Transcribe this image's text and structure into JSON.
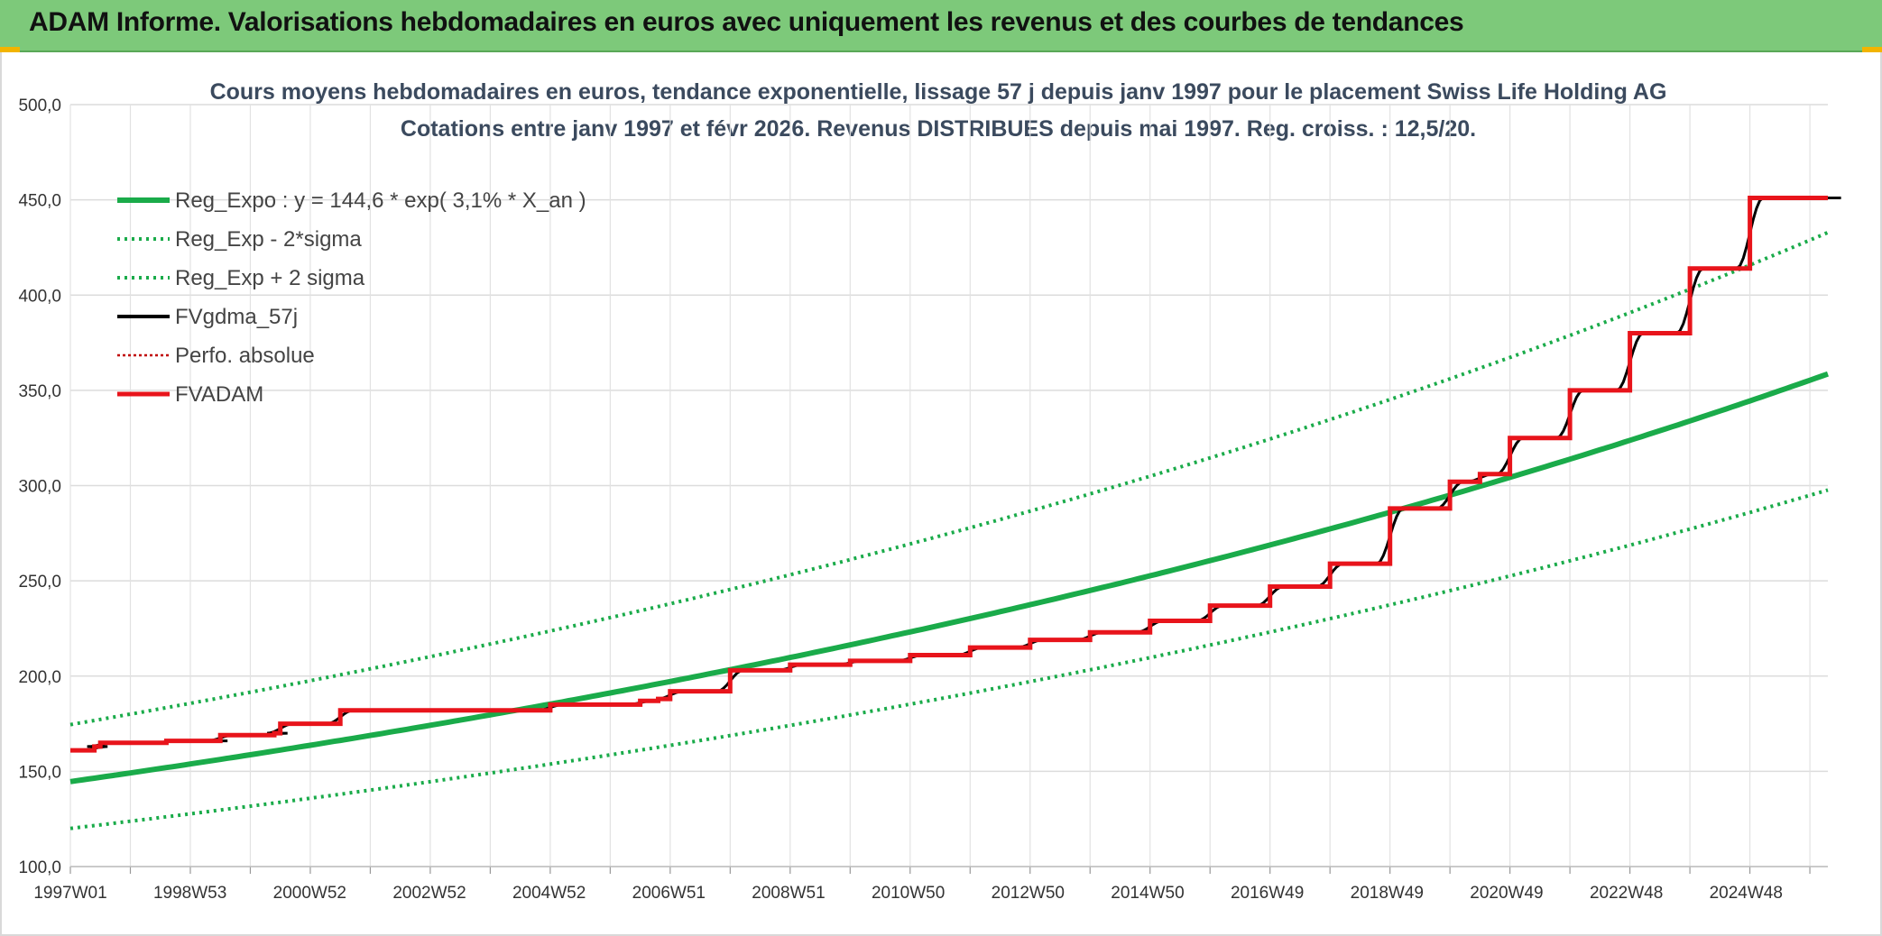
{
  "header": {
    "title": "ADAM Informe. Valorisations hebdomadaires en euros avec uniquement les revenus et des courbes de tendances"
  },
  "chart_data": {
    "type": "line",
    "title": "Cours moyens hebdomadaires en euros, tendance exponentielle, lissage 57 j depuis janv 1997 pour le placement Swiss Life Holding AG",
    "subtitle": "Cotations entre janv 1997 et févr 2026. Revenus DISTRIBUES depuis mai 1997. Reg. croiss. : 12,5/20.",
    "xlabel": "",
    "ylabel": "",
    "x_range_years": [
      1997.0,
      2026.3
    ],
    "ylim": [
      100,
      500
    ],
    "y_ticks": [
      "100,0",
      "150,0",
      "200,0",
      "250,0",
      "300,0",
      "350,0",
      "400,0",
      "450,0",
      "500,0"
    ],
    "x_tick_labels": [
      "1997W01",
      "1998W53",
      "2000W52",
      "2002W52",
      "2004W52",
      "2006W51",
      "2008W51",
      "2010W50",
      "2012W50",
      "2014W50",
      "2016W49",
      "2018W49",
      "2020W49",
      "2022W48",
      "2024W48"
    ],
    "grid": true,
    "legend_position": "top-left",
    "series": [
      {
        "name": "Reg_Expo : y = 144,6 * exp( 3,1% *  X_an )",
        "style": "solid-thick",
        "color": "#1aab4a",
        "x": [
          1997,
          2000,
          2003,
          2006,
          2009,
          2012,
          2015,
          2018,
          2021,
          2024,
          2026.3
        ],
        "values": [
          144.6,
          158.6,
          174.0,
          190.9,
          209.4,
          229.8,
          252.1,
          276.6,
          303.4,
          333.0,
          357.0
        ]
      },
      {
        "name": "Reg_Exp - 2*sigma",
        "style": "dotted",
        "color": "#1aab4a",
        "x": [
          1997,
          2000,
          2003,
          2006,
          2009,
          2012,
          2015,
          2018,
          2021,
          2024,
          2026.3
        ],
        "values": [
          120.0,
          131.6,
          144.4,
          158.4,
          173.8,
          190.7,
          209.2,
          229.6,
          251.9,
          276.4,
          297.0
        ]
      },
      {
        "name": "Reg_Exp + 2 sigma",
        "style": "dotted",
        "color": "#1aab4a",
        "x": [
          1997,
          2000,
          2003,
          2006,
          2009,
          2012,
          2015,
          2018,
          2021,
          2024,
          2026.3
        ],
        "values": [
          174.5,
          191.4,
          210.0,
          230.4,
          252.8,
          277.3,
          304.3,
          333.8,
          366.3,
          401.9,
          431.0
        ]
      },
      {
        "name": "FVgdma_57j",
        "style": "solid",
        "color": "#000000",
        "x": [
          1997,
          1997.3,
          2026.3
        ],
        "values": [
          161,
          161,
          451
        ]
      },
      {
        "name": "Perfo. absolue",
        "style": "dotted-thin",
        "color": "#c00000",
        "x": [],
        "values": []
      },
      {
        "name": "FVADAM",
        "style": "step",
        "color": "#e8141b",
        "x": [
          1997.0,
          1997.4,
          1997.5,
          1998.4,
          1998.6,
          1999.4,
          1999.5,
          2000.4,
          2000.5,
          2001.5,
          2003.5,
          2005.0,
          2006.5,
          2006.8,
          2007.0,
          2008.0,
          2009.0,
          2010.0,
          2011.0,
          2012.0,
          2013.0,
          2014.0,
          2015.0,
          2016.0,
          2017.0,
          2018.0,
          2019.0,
          2020.0,
          2020.5,
          2021.0,
          2022.0,
          2023.0,
          2024.0,
          2025.0,
          2026.3
        ],
        "values": [
          161,
          163,
          165,
          165,
          166,
          166,
          169,
          170,
          175,
          182,
          182,
          185,
          187,
          188,
          192,
          203,
          206,
          208,
          211,
          215,
          219,
          223,
          229,
          237,
          247,
          259,
          288,
          302,
          306,
          325,
          350,
          380,
          414,
          451,
          451
        ]
      }
    ]
  }
}
